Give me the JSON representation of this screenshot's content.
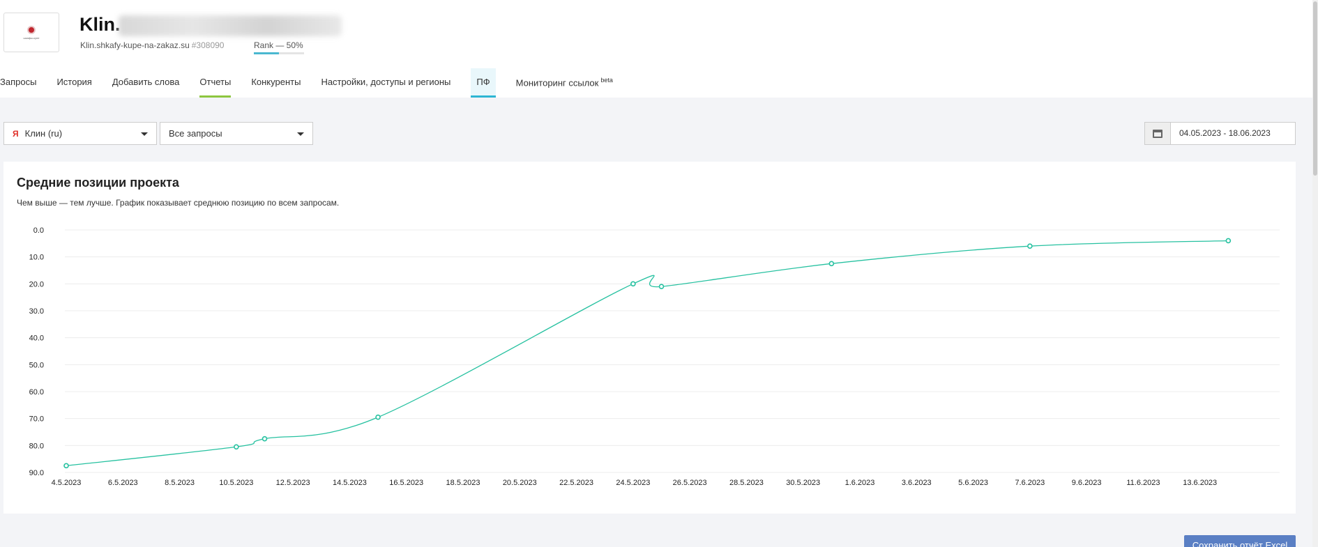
{
  "header": {
    "title": "Klin.",
    "domain": "Klin.shkafy-kupe-na-zakaz.su",
    "project_id": "#308090",
    "rank_label": "Rank — 50%",
    "rank_value": 0.5
  },
  "tabs": [
    {
      "label": "Запросы"
    },
    {
      "label": "История"
    },
    {
      "label": "Добавить слова"
    },
    {
      "label": "Отчеты"
    },
    {
      "label": "Конкуренты"
    },
    {
      "label": "Настройки, доступы и регионы"
    },
    {
      "label": "ПФ"
    },
    {
      "label": "Мониторинг ссылок",
      "badge": "beta"
    }
  ],
  "filters": {
    "region": {
      "icon": "Я",
      "value": "Клин (ru)"
    },
    "queries": {
      "value": "Все запросы"
    },
    "date_range": "04.05.2023 - 18.06.2023"
  },
  "card": {
    "title": "Средние позиции проекта",
    "subtitle": "Чем выше — тем лучше. График показывает среднюю позицию по всем запросам."
  },
  "chart_data": {
    "type": "line",
    "title": "Средние позиции проекта",
    "y_reversed": true,
    "ylim": [
      0,
      90
    ],
    "y_ticks": [
      "0.0",
      "10.0",
      "20.0",
      "30.0",
      "40.0",
      "50.0",
      "60.0",
      "70.0",
      "80.0",
      "90.0"
    ],
    "x_tick_labels": [
      "4.5.2023",
      "6.5.2023",
      "8.5.2023",
      "10.5.2023",
      "12.5.2023",
      "14.5.2023",
      "16.5.2023",
      "18.5.2023",
      "20.5.2023",
      "22.5.2023",
      "24.5.2023",
      "26.5.2023",
      "28.5.2023",
      "30.5.2023",
      "1.6.2023",
      "3.6.2023",
      "5.6.2023",
      "7.6.2023",
      "9.6.2023",
      "11.6.2023",
      "13.6.2023"
    ],
    "xlim": [
      "4.5.2023",
      "15.6.2023"
    ],
    "grid": true,
    "color": "#26c1a0",
    "series": [
      {
        "x": [
          "4.5.2023",
          "10.5.2023",
          "11.5.2023",
          "15.5.2023",
          "24.5.2023",
          "25.5.2023",
          "31.5.2023",
          "7.6.2023",
          "14.6.2023"
        ],
        "values": [
          87.5,
          80.5,
          77.5,
          69.5,
          20.0,
          21.0,
          12.5,
          6.0,
          4.0
        ]
      }
    ]
  },
  "footer": {
    "excel_button": "Сохранить отчёт Excel"
  }
}
